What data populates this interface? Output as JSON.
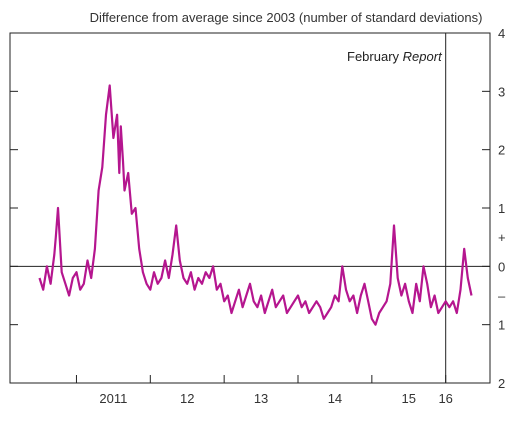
{
  "chart_data": {
    "type": "line",
    "title": "",
    "ylabel": "Difference from average since 2003 (number of standard deviations)",
    "xlabel": "",
    "ylim": [
      -2,
      4
    ],
    "xlim": [
      2010.1,
      2016.6
    ],
    "grid": false,
    "right_ticks": [
      {
        "value": 4,
        "label": "4"
      },
      {
        "value": 3,
        "label": "3"
      },
      {
        "value": 2,
        "label": "2"
      },
      {
        "value": 1,
        "label": "1"
      },
      {
        "value": 0.5,
        "label": "+"
      },
      {
        "value": 0,
        "label": "0"
      },
      {
        "value": -0.5,
        "label": "–"
      },
      {
        "value": -1,
        "label": "1"
      },
      {
        "value": -2,
        "label": "2"
      }
    ],
    "x_ticks": [
      {
        "value": 2010.5,
        "label": ""
      },
      {
        "value": 2011.5,
        "label": "2011"
      },
      {
        "value": 2012.5,
        "label": "12"
      },
      {
        "value": 2013.5,
        "label": "13"
      },
      {
        "value": 2014.5,
        "label": "14"
      },
      {
        "value": 2015.5,
        "label": "15"
      },
      {
        "value": 2016.0,
        "label": "16"
      }
    ],
    "x_boundaries": [
      2011.0,
      2012.0,
      2013.0,
      2014.0,
      2015.0,
      2016.0
    ],
    "annotation": {
      "text": "February",
      "text_italic": "Report",
      "x": 2016.0
    },
    "series": [
      {
        "color": "#b5168f",
        "x": [
          2010.5,
          2010.55,
          2010.6,
          2010.65,
          2010.7,
          2010.72,
          2010.75,
          2010.8,
          2010.85,
          2010.9,
          2010.95,
          2011.0,
          2011.05,
          2011.1,
          2011.15,
          2011.2,
          2011.25,
          2011.3,
          2011.35,
          2011.4,
          2011.45,
          2011.5,
          2011.55,
          2011.58,
          2011.6,
          2011.63,
          2011.65,
          2011.7,
          2011.75,
          2011.8,
          2011.85,
          2011.9,
          2011.95,
          2012.0,
          2012.05,
          2012.1,
          2012.15,
          2012.2,
          2012.25,
          2012.3,
          2012.35,
          2012.4,
          2012.45,
          2012.5,
          2012.55,
          2012.6,
          2012.65,
          2012.7,
          2012.75,
          2012.8,
          2012.85,
          2012.9,
          2012.95,
          2013.0,
          2013.05,
          2013.1,
          2013.15,
          2013.2,
          2013.25,
          2013.3,
          2013.35,
          2013.4,
          2013.45,
          2013.5,
          2013.55,
          2013.6,
          2013.65,
          2013.7,
          2013.75,
          2013.8,
          2013.85,
          2013.9,
          2013.95,
          2014.0,
          2014.05,
          2014.1,
          2014.15,
          2014.2,
          2014.25,
          2014.3,
          2014.35,
          2014.4,
          2014.45,
          2014.5,
          2014.55,
          2014.6,
          2014.65,
          2014.7,
          2014.75,
          2014.8,
          2014.85,
          2014.9,
          2014.95,
          2015.0,
          2015.05,
          2015.1,
          2015.15,
          2015.2,
          2015.25,
          2015.3,
          2015.35,
          2015.4,
          2015.45,
          2015.5,
          2015.55,
          2015.6,
          2015.65,
          2015.7,
          2015.75,
          2015.8,
          2015.85,
          2015.9,
          2015.95,
          2016.0,
          2016.05,
          2016.1,
          2016.15,
          2016.2,
          2016.25,
          2016.3,
          2016.35
        ],
        "values": [
          -0.2,
          -0.4,
          0.0,
          -0.3,
          0.2,
          0.5,
          1.0,
          -0.1,
          -0.3,
          -0.5,
          -0.2,
          -0.1,
          -0.4,
          -0.3,
          0.1,
          -0.2,
          0.3,
          1.3,
          1.7,
          2.6,
          3.1,
          2.2,
          2.6,
          1.6,
          2.4,
          1.8,
          1.3,
          1.6,
          0.9,
          1.0,
          0.3,
          -0.1,
          -0.3,
          -0.4,
          -0.1,
          -0.3,
          -0.2,
          0.1,
          -0.2,
          0.2,
          0.7,
          0.1,
          -0.2,
          -0.3,
          -0.1,
          -0.4,
          -0.2,
          -0.3,
          -0.1,
          -0.2,
          0.0,
          -0.4,
          -0.3,
          -0.6,
          -0.5,
          -0.8,
          -0.6,
          -0.4,
          -0.7,
          -0.5,
          -0.3,
          -0.6,
          -0.7,
          -0.5,
          -0.8,
          -0.6,
          -0.4,
          -0.7,
          -0.6,
          -0.5,
          -0.8,
          -0.7,
          -0.6,
          -0.5,
          -0.7,
          -0.6,
          -0.8,
          -0.7,
          -0.6,
          -0.7,
          -0.9,
          -0.8,
          -0.7,
          -0.5,
          -0.6,
          0.0,
          -0.4,
          -0.6,
          -0.5,
          -0.8,
          -0.5,
          -0.3,
          -0.6,
          -0.9,
          -1.0,
          -0.8,
          -0.7,
          -0.6,
          -0.3,
          0.7,
          -0.2,
          -0.5,
          -0.3,
          -0.6,
          -0.8,
          -0.3,
          -0.6,
          0.0,
          -0.3,
          -0.7,
          -0.5,
          -0.8,
          -0.7,
          -0.6,
          -0.7,
          -0.6,
          -0.8,
          -0.4,
          0.3,
          -0.2,
          -0.5
        ]
      }
    ]
  }
}
